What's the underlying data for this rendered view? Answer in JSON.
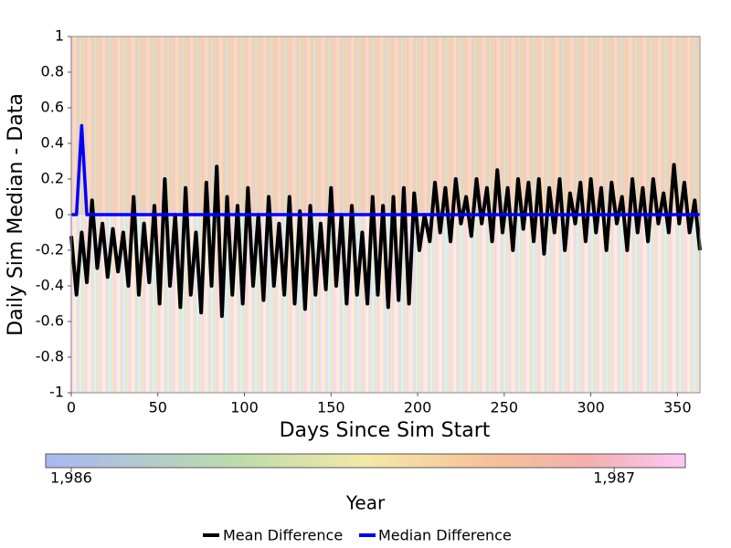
{
  "chart_data": {
    "type": "line",
    "xlabel": "Days Since Sim Start",
    "ylabel": "Daily Sim Median - Data",
    "x": [
      0,
      3,
      6,
      9,
      12,
      15,
      18,
      21,
      24,
      27,
      30,
      33,
      36,
      39,
      42,
      45,
      48,
      51,
      54,
      57,
      60,
      63,
      66,
      69,
      72,
      75,
      78,
      81,
      84,
      87,
      90,
      93,
      96,
      99,
      102,
      105,
      108,
      111,
      114,
      117,
      120,
      123,
      126,
      129,
      132,
      135,
      138,
      141,
      144,
      147,
      150,
      153,
      156,
      159,
      162,
      165,
      168,
      171,
      174,
      177,
      180,
      183,
      186,
      189,
      192,
      195,
      198,
      201,
      204,
      207,
      210,
      213,
      216,
      219,
      222,
      225,
      228,
      231,
      234,
      237,
      240,
      243,
      246,
      249,
      252,
      255,
      258,
      261,
      264,
      267,
      270,
      273,
      276,
      279,
      282,
      285,
      288,
      291,
      294,
      297,
      300,
      303,
      306,
      309,
      312,
      315,
      318,
      321,
      324,
      327,
      330,
      333,
      336,
      339,
      342,
      345,
      348,
      351,
      354,
      357,
      360,
      363
    ],
    "series": [
      {
        "name": "Mean Difference",
        "color": "#000000",
        "values": [
          -0.12,
          -0.45,
          -0.1,
          -0.38,
          0.08,
          -0.3,
          -0.05,
          -0.35,
          -0.08,
          -0.32,
          -0.1,
          -0.4,
          0.1,
          -0.45,
          -0.05,
          -0.38,
          0.05,
          -0.5,
          0.2,
          -0.4,
          0.0,
          -0.52,
          0.15,
          -0.45,
          -0.1,
          -0.55,
          0.18,
          -0.4,
          0.27,
          -0.57,
          0.1,
          -0.45,
          0.05,
          -0.5,
          0.15,
          -0.4,
          0.0,
          -0.48,
          0.1,
          -0.4,
          -0.05,
          -0.45,
          0.1,
          -0.5,
          0.02,
          -0.53,
          0.05,
          -0.45,
          -0.05,
          -0.42,
          0.15,
          -0.4,
          0.0,
          -0.5,
          0.05,
          -0.45,
          -0.1,
          -0.5,
          0.1,
          -0.45,
          0.05,
          -0.52,
          0.1,
          -0.48,
          0.15,
          -0.5,
          0.12,
          -0.2,
          0.0,
          -0.15,
          0.18,
          -0.1,
          0.15,
          -0.15,
          0.2,
          -0.05,
          0.1,
          -0.12,
          0.2,
          -0.05,
          0.15,
          -0.15,
          0.25,
          -0.1,
          0.15,
          -0.2,
          0.2,
          -0.08,
          0.18,
          -0.15,
          0.2,
          -0.22,
          0.15,
          -0.1,
          0.2,
          -0.2,
          0.12,
          -0.05,
          0.18,
          -0.15,
          0.2,
          -0.1,
          0.15,
          -0.2,
          0.18,
          -0.05,
          0.1,
          -0.2,
          0.2,
          -0.1,
          0.15,
          -0.15,
          0.2,
          -0.05,
          0.12,
          -0.1,
          0.28,
          -0.05,
          0.18,
          -0.1,
          0.08,
          -0.2
        ]
      },
      {
        "name": "Median Difference",
        "color": "#0000ff",
        "values": [
          0,
          0,
          0.5,
          0,
          0,
          0,
          0,
          0,
          0,
          0,
          0,
          0,
          0,
          0,
          0,
          0,
          0,
          0,
          0,
          0,
          0,
          0,
          0,
          0,
          0,
          0,
          0,
          0,
          0,
          0,
          0,
          0,
          0,
          0,
          0,
          0,
          0,
          0,
          0,
          0,
          0,
          0,
          0,
          0,
          0,
          0,
          0,
          0,
          0,
          0,
          0,
          0,
          0,
          0,
          0,
          0,
          0,
          0,
          0,
          0,
          0,
          0,
          0,
          0,
          0,
          0,
          0,
          0,
          0,
          0,
          0,
          0,
          0,
          0,
          0,
          0,
          0,
          0,
          0,
          0,
          0,
          0,
          0,
          0,
          0,
          0,
          0,
          0,
          0,
          0,
          0,
          0,
          0,
          0,
          0,
          0,
          0,
          0,
          0,
          0,
          0,
          0,
          0,
          0,
          0,
          0,
          0,
          0,
          0,
          0,
          0,
          0,
          0,
          0,
          0,
          0,
          0,
          0,
          0,
          0,
          0,
          0
        ]
      }
    ],
    "xlim": [
      0,
      363
    ],
    "xticks": [
      0,
      50,
      100,
      150,
      200,
      250,
      300,
      350
    ],
    "ylim": [
      -1,
      1
    ],
    "yticks": [
      -1,
      -0.8,
      -0.6,
      -0.4,
      -0.2,
      0,
      0.2,
      0.4,
      0.6,
      0.8,
      1
    ],
    "grid": false,
    "colorbar": {
      "label": "Year",
      "lim": [
        1985.953,
        1987.131
      ],
      "ticks": [
        {
          "value": 1986,
          "label": "1,986"
        },
        {
          "value": 1987,
          "label": "1,987"
        }
      ]
    },
    "legend": "bottom"
  }
}
